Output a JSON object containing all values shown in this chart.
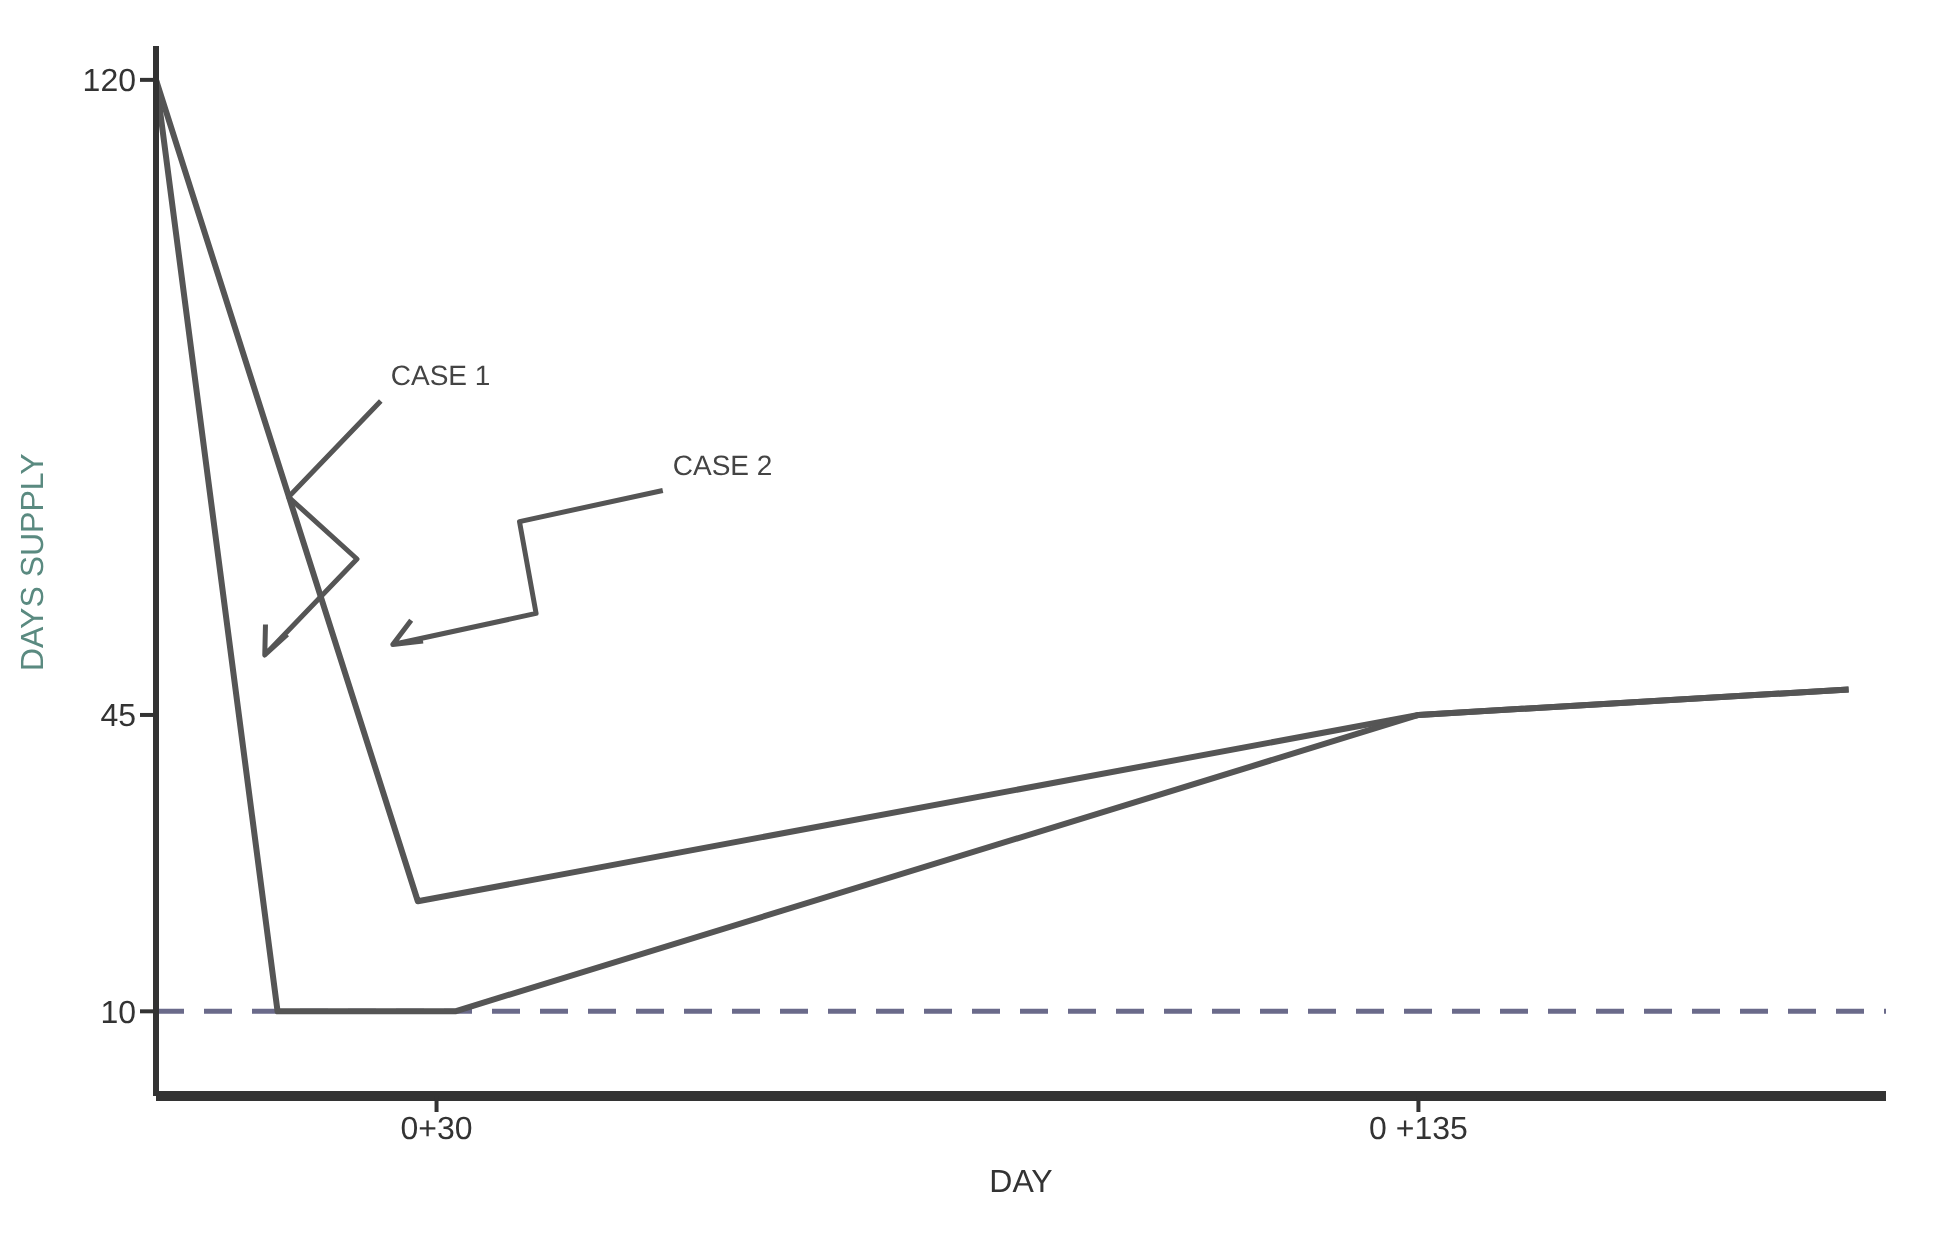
{
  "chart_data": {
    "type": "line",
    "xlabel": "DAY",
    "ylabel": "DAYS SUPPLY",
    "ylim": [
      0,
      124
    ],
    "yticks": [
      10,
      45,
      120
    ],
    "grid": false,
    "legend": false,
    "marker": "none",
    "categories": [
      null,
      null,
      null,
      null,
      null,
      null,
      null,
      null,
      null,
      null,
      null,
      null,
      null,
      null,
      null,
      null,
      null,
      null,
      null,
      null,
      null,
      null,
      null,
      null,
      null,
      null,
      null,
      null,
      null,
      null,
      "0+30",
      null,
      null,
      null,
      null,
      null,
      null,
      null,
      null,
      null,
      null,
      null,
      null,
      null,
      null,
      null,
      null,
      null,
      null,
      null,
      null,
      null,
      null,
      null,
      null,
      null,
      null,
      null,
      null,
      null,
      null,
      null,
      null,
      null,
      null,
      null,
      null,
      null,
      null,
      null,
      null,
      null,
      null,
      null,
      null,
      null,
      null,
      null,
      null,
      null,
      null,
      null,
      null,
      null,
      null,
      null,
      null,
      null,
      null,
      null,
      null,
      null,
      null,
      null,
      null,
      null,
      null,
      null,
      null,
      null,
      null,
      null,
      null,
      null,
      null,
      null,
      null,
      null,
      null,
      null,
      null,
      null,
      null,
      null,
      null,
      null,
      null,
      null,
      null,
      null,
      null,
      null,
      null,
      null,
      null,
      null,
      null,
      null,
      null,
      null,
      null,
      null,
      null,
      null,
      null,
      "0 +135",
      null,
      null,
      null,
      null,
      null,
      null,
      null,
      null,
      null,
      null,
      null,
      null,
      null,
      null,
      null,
      null,
      null,
      null,
      null,
      null,
      null,
      null,
      null,
      null,
      null,
      null,
      null,
      null,
      null,
      null,
      null,
      null,
      null,
      null,
      null,
      null,
      null,
      null,
      null,
      null,
      null,
      null,
      null,
      null,
      null,
      null,
      null,
      null,
      null,
      null
    ],
    "series": [
      {
        "color": "#555555",
        "values": [
          120,
          null,
          null,
          null,
          null,
          null,
          null,
          null,
          null,
          null,
          null,
          null,
          null,
          10,
          null,
          null,
          null,
          null,
          null,
          null,
          null,
          null,
          null,
          null,
          null,
          null,
          null,
          null,
          null,
          null,
          null,
          null,
          10,
          null,
          null,
          null,
          null,
          null,
          null,
          null,
          null,
          null,
          null,
          null,
          null,
          null,
          null,
          null,
          null,
          null,
          null,
          null,
          null,
          null,
          null,
          null,
          null,
          null,
          null,
          null,
          null,
          null,
          null,
          null,
          null,
          null,
          null,
          null,
          null,
          null,
          null,
          null,
          null,
          null,
          null,
          null,
          null,
          null,
          null,
          null,
          null,
          null,
          null,
          null,
          null,
          null,
          null,
          null,
          null,
          null,
          null,
          null,
          null,
          null,
          null,
          null,
          null,
          null,
          null,
          null,
          null,
          null,
          null,
          null,
          null,
          null,
          null,
          null,
          null,
          null,
          null,
          null,
          null,
          null,
          null,
          null,
          null,
          null,
          null,
          null,
          null,
          null,
          null,
          null,
          null,
          null,
          null,
          null,
          null,
          null,
          null,
          null,
          null,
          null,
          null,
          45,
          null,
          null,
          null,
          null,
          null,
          null,
          null,
          null,
          null,
          null,
          null,
          null,
          null,
          null,
          null,
          null,
          null,
          null,
          null,
          null,
          null,
          null,
          null,
          null,
          null,
          null,
          null,
          null,
          null,
          null,
          null,
          null,
          null,
          null,
          null,
          null,
          null,
          null,
          null,
          null,
          null,
          null,
          null,
          null,
          null,
          48,
          null,
          null,
          null,
          null
        ]
      },
      {
        "color": "#555555",
        "values": [
          120,
          null,
          null,
          null,
          null,
          null,
          null,
          null,
          null,
          null,
          null,
          null,
          null,
          null,
          null,
          null,
          null,
          null,
          null,
          null,
          null,
          null,
          null,
          null,
          null,
          null,
          null,
          null,
          23,
          null,
          null,
          null,
          null,
          null,
          null,
          null,
          null,
          null,
          null,
          null,
          null,
          null,
          null,
          null,
          null,
          null,
          null,
          null,
          null,
          null,
          null,
          null,
          null,
          null,
          null,
          null,
          null,
          null,
          null,
          null,
          null,
          null,
          null,
          null,
          null,
          null,
          null,
          null,
          null,
          null,
          null,
          null,
          null,
          null,
          null,
          null,
          null,
          null,
          null,
          null,
          null,
          null,
          null,
          null,
          null,
          null,
          null,
          null,
          null,
          null,
          null,
          null,
          null,
          null,
          null,
          null,
          null,
          null,
          null,
          null,
          null,
          null,
          null,
          null,
          null,
          null,
          null,
          null,
          null,
          null,
          null,
          null,
          null,
          null,
          null,
          null,
          null,
          null,
          null,
          null,
          null,
          null,
          null,
          null,
          null,
          null,
          null,
          null,
          null,
          null,
          null,
          null,
          null,
          null,
          null,
          45,
          null,
          null,
          null,
          null,
          null,
          null,
          null,
          null,
          null,
          null,
          null,
          null,
          null,
          null,
          null,
          null,
          null,
          null,
          null,
          null,
          null,
          null,
          null,
          null,
          null,
          null,
          null,
          null,
          null,
          null,
          null,
          null,
          null,
          null,
          null,
          null,
          null,
          null,
          null,
          null,
          null,
          null,
          null,
          null,
          null,
          48,
          null,
          null,
          null,
          null
        ]
      }
    ],
    "ref_lines": [
      {
        "axis": "y",
        "value": 10,
        "color": "#6a6a8a",
        "line_style": "dashed"
      }
    ],
    "annotations": [
      "CASE 1",
      "CASE 2"
    ]
  }
}
